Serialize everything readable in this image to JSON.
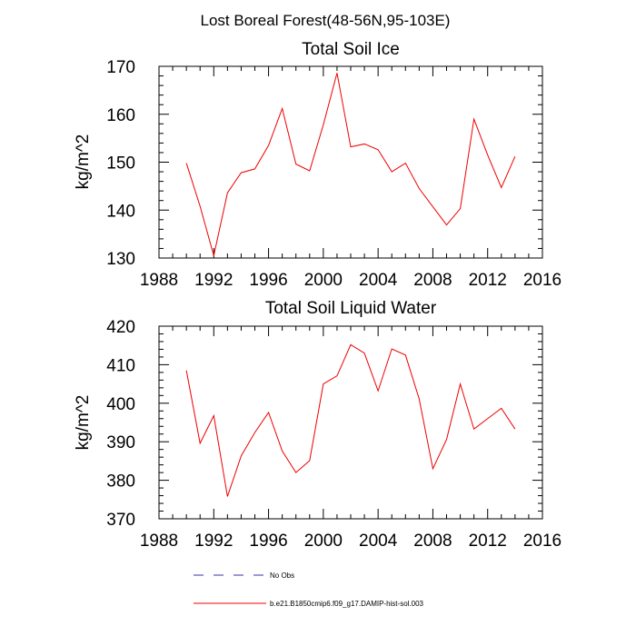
{
  "figure_title": "Lost Boreal Forest(48-56N,95-103E)",
  "legend": [
    {
      "label": "No Obs",
      "color": "#3333aa",
      "style": "dashed"
    },
    {
      "label": "b.e21.B1850cmip6.f09_g17.DAMIP-hist-sol.003",
      "color": "#ee0000",
      "style": "solid"
    }
  ],
  "chart_data": [
    {
      "type": "line",
      "title": "Total Soil Ice",
      "ylabel": "kg/m^2",
      "xlabel": "",
      "xlim": [
        1988,
        2016
      ],
      "ylim": [
        130,
        170
      ],
      "xticks": [
        1988,
        1992,
        1996,
        2000,
        2004,
        2008,
        2012,
        2016
      ],
      "yticks": [
        130,
        140,
        150,
        160,
        170
      ],
      "grid": false,
      "x": [
        1990,
        1991,
        1992,
        1993,
        1994,
        1995,
        1996,
        1997,
        1998,
        1999,
        2000,
        2001,
        2002,
        2003,
        2004,
        2005,
        2006,
        2007,
        2008,
        2009,
        2010,
        2011,
        2012,
        2013,
        2014
      ],
      "series": [
        {
          "color": "#ee0000",
          "values": [
            149.8,
            140.8,
            130.5,
            143.6,
            147.8,
            148.6,
            153.5,
            161.2,
            149.6,
            148.2,
            157.8,
            168.6,
            153.2,
            153.8,
            152.6,
            148.0,
            149.8,
            144.5,
            140.7,
            136.9,
            140.3,
            159.0,
            151.5,
            144.7,
            151.2
          ]
        }
      ]
    },
    {
      "type": "line",
      "title": "Total Soil Liquid Water",
      "ylabel": "kg/m^2",
      "xlabel": "",
      "xlim": [
        1988,
        2016
      ],
      "ylim": [
        370,
        420
      ],
      "xticks": [
        1988,
        1992,
        1996,
        2000,
        2004,
        2008,
        2012,
        2016
      ],
      "yticks": [
        370,
        380,
        390,
        400,
        410,
        420
      ],
      "grid": false,
      "x": [
        1990,
        1991,
        1992,
        1993,
        1994,
        1995,
        1996,
        1997,
        1998,
        1999,
        2000,
        2001,
        2002,
        2003,
        2004,
        2005,
        2006,
        2007,
        2008,
        2009,
        2010,
        2011,
        2012,
        2013,
        2014
      ],
      "series": [
        {
          "color": "#ee0000",
          "values": [
            408.5,
            389.6,
            396.8,
            375.8,
            386.3,
            392.4,
            397.6,
            387.6,
            382.0,
            385.1,
            405.0,
            407.1,
            415.2,
            413.0,
            403.2,
            414.1,
            412.5,
            401.1,
            383.0,
            390.6,
            405.0,
            393.3,
            396.0,
            398.7,
            393.3
          ]
        }
      ]
    }
  ]
}
